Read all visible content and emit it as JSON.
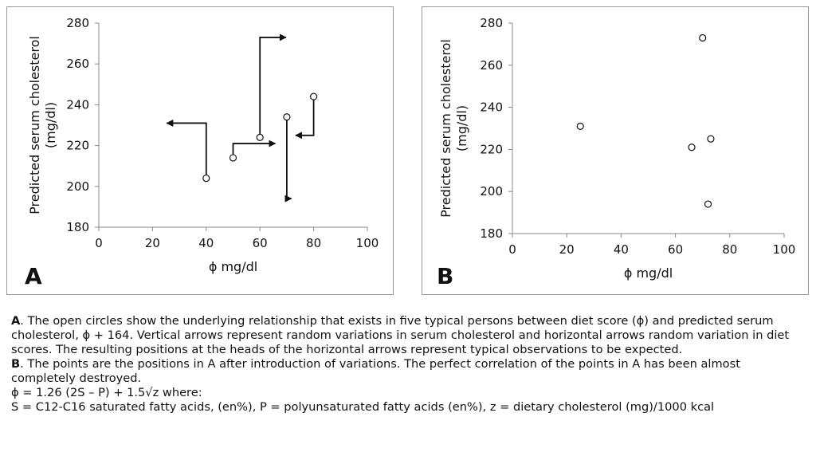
{
  "charts": [
    {
      "panel_label": "A",
      "chart_data": {
        "type": "scatter",
        "xlabel": "ϕ mg/dl",
        "ylabel_lines": [
          "Predicted serum cholesterol",
          "(mg/dl)"
        ],
        "xlim": [
          0,
          100
        ],
        "ylim": [
          180,
          280
        ],
        "xticks": [
          0,
          20,
          40,
          60,
          80,
          100
        ],
        "yticks": [
          180,
          200,
          220,
          240,
          260,
          280
        ],
        "grid": false,
        "points": [
          {
            "x": 40,
            "y": 204
          },
          {
            "x": 50,
            "y": 214
          },
          {
            "x": 60,
            "y": 224
          },
          {
            "x": 70,
            "y": 234
          },
          {
            "x": 80,
            "y": 244
          }
        ],
        "arrows": [
          {
            "from_x": 40,
            "from_y": 204,
            "to_y": 231,
            "to_x": 25
          },
          {
            "from_x": 50,
            "from_y": 214,
            "to_y": 221,
            "to_x": 66
          },
          {
            "from_x": 60,
            "from_y": 224,
            "to_y": 273,
            "to_x": 70
          },
          {
            "from_x": 70,
            "from_y": 234,
            "to_y": 194,
            "to_x": 72
          },
          {
            "from_x": 80,
            "from_y": 244,
            "to_y": 225,
            "to_x": 73
          }
        ]
      }
    },
    {
      "panel_label": "B",
      "chart_data": {
        "type": "scatter",
        "xlabel": "ϕ mg/dl",
        "ylabel_lines": [
          "Predicted serum cholesterol",
          "(mg/dl)"
        ],
        "xlim": [
          0,
          100
        ],
        "ylim": [
          180,
          280
        ],
        "xticks": [
          0,
          20,
          40,
          60,
          80,
          100
        ],
        "yticks": [
          180,
          200,
          220,
          240,
          260,
          280
        ],
        "grid": false,
        "points": [
          {
            "x": 25,
            "y": 231
          },
          {
            "x": 66,
            "y": 221
          },
          {
            "x": 70,
            "y": 273
          },
          {
            "x": 72,
            "y": 194
          },
          {
            "x": 73,
            "y": 225
          }
        ]
      }
    }
  ],
  "caption": {
    "a_label": "A",
    "a_text": ". The open circles show the underlying relationship that exists in five typical persons between diet score (ϕ) and predicted serum cholesterol, ϕ + 164. Vertical arrows represent random variations in serum cholesterol and horizontal arrows random variation in diet scores. The resulting positions at the heads of the horizontal arrows represent typical observations to be expected.",
    "b_label": "B",
    "b_text": ". The points are the positions in A after introduction of variations. The perfect correlation of the points in A has been almost completely destroyed.",
    "formula": "ϕ = 1.26 (2S – P) + 1.5√z where:",
    "definitions": "S = C12-C16 saturated fatty acids, (en%), P = polyunsaturated fatty acids (en%), z = dietary cholesterol (mg)/1000 kcal"
  }
}
